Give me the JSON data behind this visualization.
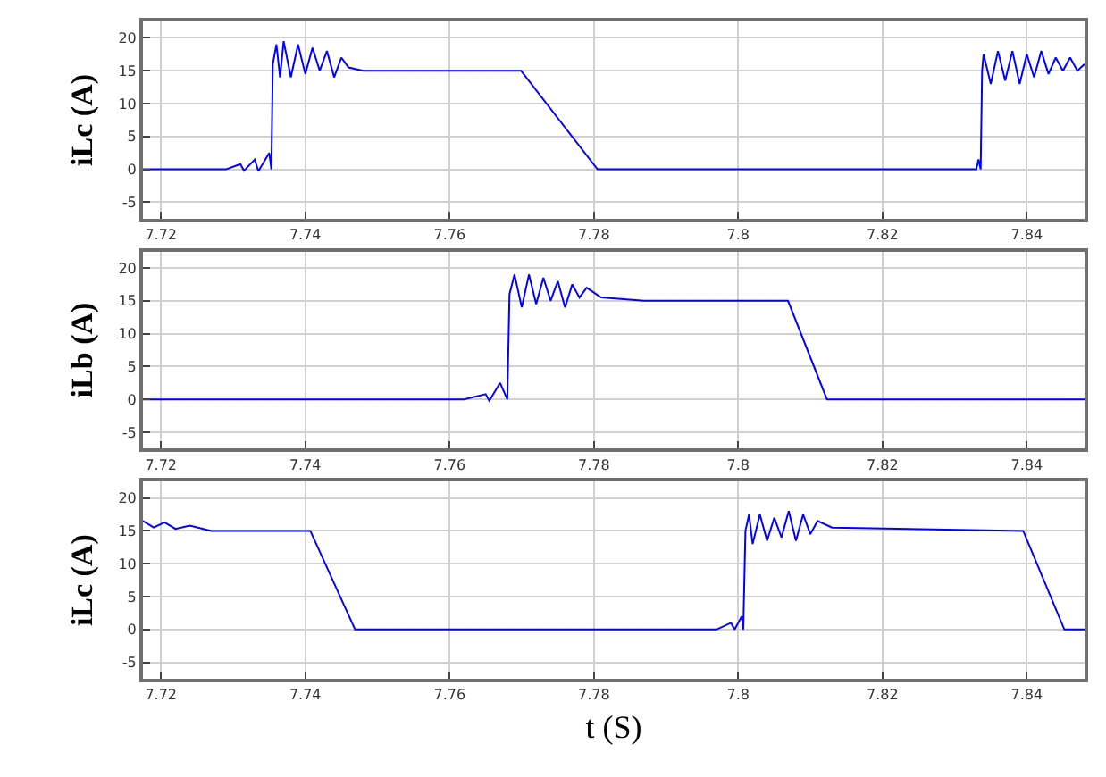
{
  "chart_data": [
    {
      "type": "line",
      "ylabel": "iLc (A)",
      "color": "#0000ff",
      "grid": true,
      "xlim": [
        7.7175,
        7.848
      ],
      "ylim": [
        -7.5,
        22.5
      ],
      "xticks": [
        7.72,
        7.74,
        7.76,
        7.78,
        7.8,
        7.82,
        7.84
      ],
      "yticks": [
        -5,
        0,
        5,
        10,
        15,
        20
      ],
      "x": [
        7.7175,
        7.729,
        7.731,
        7.7315,
        7.733,
        7.7335,
        7.735,
        7.7353,
        7.7355,
        7.736,
        7.7365,
        7.737,
        7.738,
        7.739,
        7.74,
        7.741,
        7.742,
        7.743,
        7.744,
        7.745,
        7.746,
        7.748,
        7.7699,
        7.7805,
        7.833,
        7.8333,
        7.8336,
        7.8338,
        7.834,
        7.835,
        7.836,
        7.837,
        7.838,
        7.839,
        7.84,
        7.841,
        7.842,
        7.843,
        7.844,
        7.845,
        7.846,
        7.847,
        7.848
      ],
      "values": [
        0,
        0,
        0.8,
        -0.2,
        1.5,
        -0.3,
        2.5,
        0,
        16,
        19,
        14,
        19.5,
        14,
        19,
        14.5,
        18.5,
        15,
        18,
        14,
        17,
        15.5,
        15,
        15,
        0,
        0,
        1.5,
        0,
        15,
        17.5,
        13,
        18,
        13.5,
        18,
        13,
        17.5,
        14,
        18,
        14.5,
        17,
        15,
        17,
        15,
        16
      ]
    },
    {
      "type": "line",
      "ylabel": "iLb (A)",
      "color": "#0000ff",
      "grid": true,
      "xlim": [
        7.7175,
        7.848
      ],
      "ylim": [
        -7.5,
        22.5
      ],
      "xticks": [
        7.72,
        7.74,
        7.76,
        7.78,
        7.8,
        7.82,
        7.84
      ],
      "yticks": [
        -5,
        0,
        5,
        10,
        15,
        20
      ],
      "x": [
        7.7175,
        7.762,
        7.765,
        7.7655,
        7.767,
        7.768,
        7.7683,
        7.769,
        7.77,
        7.771,
        7.772,
        7.773,
        7.774,
        7.775,
        7.776,
        7.777,
        7.778,
        7.779,
        7.781,
        7.7869,
        7.8069,
        7.8123,
        7.848
      ],
      "values": [
        0,
        0,
        0.8,
        -0.2,
        2.5,
        0,
        16,
        19,
        14,
        19,
        14.5,
        18.5,
        15,
        18,
        14,
        17.5,
        15.5,
        17,
        15.5,
        15,
        15,
        0,
        0
      ]
    },
    {
      "type": "line",
      "ylabel": "iLc (A)",
      "xlabel": "t (S)",
      "color": "#0000ff",
      "grid": true,
      "xlim": [
        7.7175,
        7.848
      ],
      "ylim": [
        -7.5,
        22.5
      ],
      "xticks": [
        7.72,
        7.74,
        7.76,
        7.78,
        7.8,
        7.82,
        7.84
      ],
      "yticks": [
        -5,
        0,
        5,
        10,
        15,
        20
      ],
      "x": [
        7.7175,
        7.719,
        7.7205,
        7.722,
        7.724,
        7.727,
        7.7407,
        7.7469,
        7.797,
        7.799,
        7.7995,
        7.8005,
        7.8007,
        7.801,
        7.8015,
        7.802,
        7.803,
        7.804,
        7.805,
        7.806,
        7.807,
        7.808,
        7.809,
        7.81,
        7.811,
        7.813,
        7.8395,
        7.8452,
        7.848
      ],
      "values": [
        16.5,
        15.5,
        16.3,
        15.3,
        15.8,
        15,
        15,
        0,
        0,
        1,
        0,
        2,
        0,
        15,
        17.5,
        13,
        17.5,
        13.5,
        17,
        14,
        18,
        13.5,
        17.5,
        14.5,
        16.5,
        15.5,
        15,
        0,
        0
      ]
    }
  ]
}
